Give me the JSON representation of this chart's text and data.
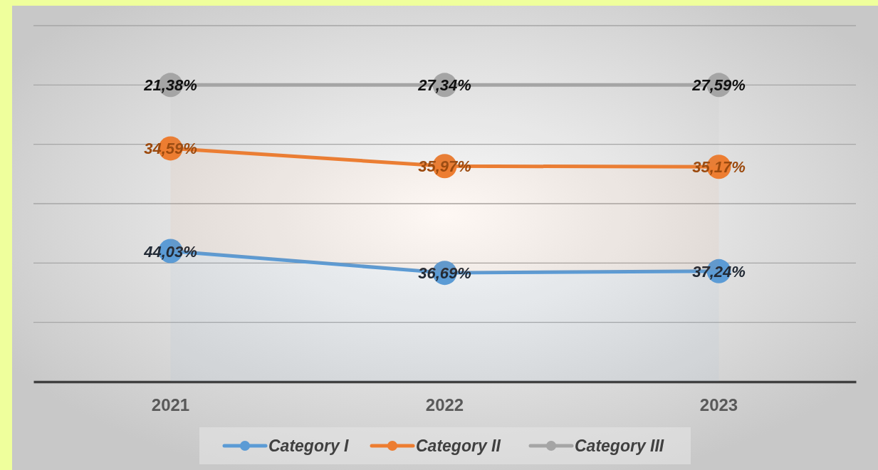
{
  "chart_data": {
    "type": "area",
    "stacked": true,
    "categories": [
      "2021",
      "2022",
      "2023"
    ],
    "series": [
      {
        "name": "Category I",
        "color": "#5b9bd5",
        "values": [
          44.03,
          36.69,
          37.24
        ],
        "value_labels": [
          "44,03%",
          "36,69%",
          "37,24%"
        ]
      },
      {
        "name": "Category II",
        "color": "#ed7d31",
        "values": [
          34.59,
          35.97,
          35.17
        ],
        "value_labels": [
          "34,59%",
          "35,97%",
          "35,17%"
        ]
      },
      {
        "name": "Category III",
        "color": "#a5a5a5",
        "values": [
          21.38,
          27.34,
          27.59
        ],
        "value_labels": [
          "21,38%",
          "27,34%",
          "27,59%"
        ]
      }
    ],
    "ylim": [
      0,
      120
    ],
    "yticks": [
      {
        "value": 0,
        "label": null
      },
      {
        "value": 20,
        "label": null
      },
      {
        "value": 40,
        "label": null
      },
      {
        "value": 60,
        "label": null
      },
      {
        "value": 80,
        "label": null
      },
      {
        "value": 100,
        "label": null
      },
      {
        "value": 120,
        "label": null
      }
    ],
    "tick_labels": "x",
    "grid": "y",
    "legend": "bottom",
    "marker": "circle",
    "line_style": "solid"
  }
}
